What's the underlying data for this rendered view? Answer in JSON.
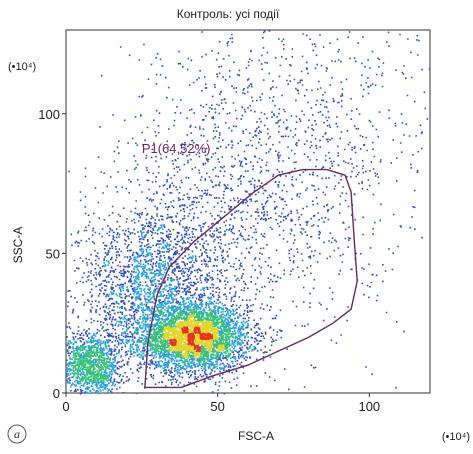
{
  "chart_data": {
    "type": "scatter",
    "title": "Контроль: усі події",
    "xlabel": "FSC-A",
    "ylabel": "SSC-A",
    "x_multiplier": "(•10⁴)",
    "y_multiplier": "(•10⁴)",
    "xlim": [
      0,
      120
    ],
    "ylim": [
      0,
      130
    ],
    "x_ticks": [
      "0",
      "50",
      "100"
    ],
    "x_tick_values": [
      0,
      50,
      100
    ],
    "y_ticks": [
      "0",
      "50",
      "100"
    ],
    "y_tick_values": [
      0,
      50,
      100
    ],
    "rendering": "density dot plot (pseudocolor, blue = low density, red = high density)",
    "density_colors": [
      "#2f4fc9",
      "#2aa0dc",
      "#36c07a",
      "#e3d62a",
      "#e8321e"
    ],
    "populations": [
      {
        "center": [
          42,
          20
        ],
        "spread": [
          9,
          6
        ],
        "weight": 0.42
      },
      {
        "center": [
          28,
          38
        ],
        "spread": [
          12,
          14
        ],
        "weight": 0.22
      },
      {
        "center": [
          8,
          10
        ],
        "spread": [
          5,
          6
        ],
        "weight": 0.14
      },
      {
        "center": [
          55,
          65
        ],
        "spread": [
          22,
          25
        ],
        "weight": 0.14
      },
      {
        "center": [
          80,
          100
        ],
        "spread": [
          25,
          30
        ],
        "weight": 0.08
      }
    ],
    "gate": {
      "label": "P1(64,52%)",
      "name": "P1",
      "percent": 64.52,
      "color": "#6b2a5a",
      "polygon": [
        [
          26,
          2
        ],
        [
          27,
          18
        ],
        [
          30,
          35
        ],
        [
          34,
          45
        ],
        [
          42,
          54
        ],
        [
          52,
          63
        ],
        [
          62,
          72
        ],
        [
          70,
          78
        ],
        [
          78,
          80
        ],
        [
          86,
          80
        ],
        [
          92,
          78
        ],
        [
          94,
          72
        ],
        [
          95,
          55
        ],
        [
          96,
          40
        ],
        [
          94,
          30
        ],
        [
          88,
          25
        ],
        [
          80,
          20
        ],
        [
          70,
          15
        ],
        [
          60,
          10
        ],
        [
          48,
          6
        ],
        [
          38,
          2
        ]
      ]
    },
    "panel_label": "a",
    "grid": false
  }
}
